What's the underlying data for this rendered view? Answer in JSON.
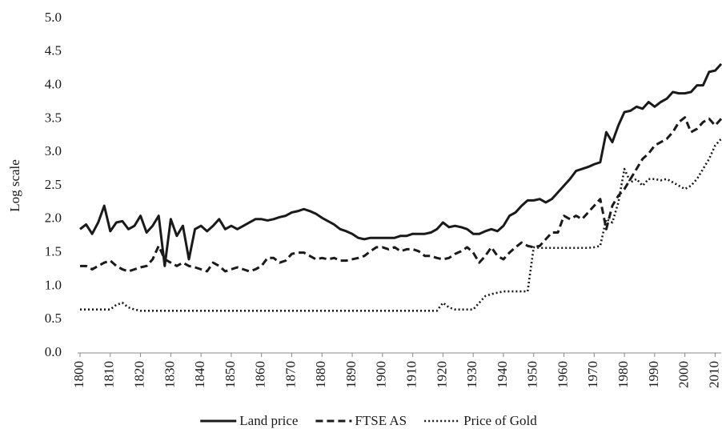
{
  "chart_data": {
    "type": "line",
    "ylabel": "Log scale",
    "x": [
      1800,
      1802,
      1804,
      1806,
      1808,
      1810,
      1812,
      1814,
      1816,
      1818,
      1820,
      1822,
      1824,
      1826,
      1828,
      1830,
      1832,
      1834,
      1836,
      1838,
      1840,
      1842,
      1844,
      1846,
      1848,
      1850,
      1852,
      1854,
      1856,
      1858,
      1860,
      1862,
      1864,
      1866,
      1868,
      1870,
      1872,
      1874,
      1876,
      1878,
      1880,
      1882,
      1884,
      1886,
      1888,
      1890,
      1892,
      1894,
      1896,
      1898,
      1900,
      1902,
      1904,
      1906,
      1908,
      1910,
      1912,
      1914,
      1916,
      1918,
      1920,
      1922,
      1924,
      1926,
      1928,
      1930,
      1932,
      1934,
      1936,
      1938,
      1940,
      1942,
      1944,
      1946,
      1948,
      1950,
      1952,
      1954,
      1956,
      1958,
      1960,
      1962,
      1964,
      1966,
      1968,
      1970,
      1972,
      1974,
      1976,
      1978,
      1980,
      1982,
      1984,
      1986,
      1988,
      1990,
      1992,
      1994,
      1996,
      1998,
      2000,
      2002,
      2004,
      2006,
      2008,
      2010,
      2012
    ],
    "series": [
      {
        "name": "Land price",
        "color": "#1a1a1a",
        "line_style": "solid",
        "values": [
          1.85,
          1.92,
          1.78,
          1.95,
          2.2,
          1.82,
          1.95,
          1.97,
          1.85,
          1.9,
          2.05,
          1.8,
          1.9,
          2.05,
          1.3,
          2.0,
          1.75,
          1.9,
          1.4,
          1.85,
          1.9,
          1.82,
          1.9,
          2.0,
          1.85,
          1.9,
          1.85,
          1.9,
          1.95,
          2.0,
          2.0,
          1.98,
          2.0,
          2.03,
          2.05,
          2.1,
          2.12,
          2.15,
          2.12,
          2.08,
          2.02,
          1.97,
          1.92,
          1.85,
          1.82,
          1.78,
          1.72,
          1.7,
          1.72,
          1.72,
          1.72,
          1.72,
          1.72,
          1.75,
          1.75,
          1.78,
          1.78,
          1.78,
          1.8,
          1.85,
          1.95,
          1.88,
          1.9,
          1.88,
          1.85,
          1.78,
          1.78,
          1.82,
          1.85,
          1.82,
          1.9,
          2.05,
          2.1,
          2.2,
          2.28,
          2.28,
          2.3,
          2.25,
          2.3,
          2.4,
          2.5,
          2.6,
          2.72,
          2.75,
          2.78,
          2.82,
          2.85,
          3.3,
          3.15,
          3.4,
          3.6,
          3.62,
          3.68,
          3.65,
          3.75,
          3.68,
          3.75,
          3.8,
          3.9,
          3.88,
          3.88,
          3.9,
          4.0,
          4.0,
          4.2,
          4.22,
          4.32
        ]
      },
      {
        "name": "FTSE AS",
        "color": "#1a1a1a",
        "line_style": "dashed",
        "values": [
          1.3,
          1.3,
          1.25,
          1.3,
          1.35,
          1.38,
          1.3,
          1.25,
          1.22,
          1.25,
          1.28,
          1.3,
          1.4,
          1.6,
          1.4,
          1.35,
          1.3,
          1.35,
          1.3,
          1.28,
          1.25,
          1.22,
          1.35,
          1.3,
          1.22,
          1.25,
          1.28,
          1.25,
          1.22,
          1.25,
          1.3,
          1.42,
          1.42,
          1.35,
          1.38,
          1.48,
          1.5,
          1.5,
          1.45,
          1.4,
          1.42,
          1.4,
          1.42,
          1.38,
          1.38,
          1.4,
          1.42,
          1.45,
          1.52,
          1.58,
          1.58,
          1.55,
          1.58,
          1.52,
          1.55,
          1.55,
          1.52,
          1.45,
          1.45,
          1.42,
          1.4,
          1.42,
          1.48,
          1.52,
          1.58,
          1.5,
          1.35,
          1.45,
          1.58,
          1.45,
          1.4,
          1.5,
          1.58,
          1.65,
          1.6,
          1.58,
          1.6,
          1.7,
          1.8,
          1.8,
          2.05,
          2.0,
          2.05,
          2.0,
          2.1,
          2.2,
          2.3,
          1.85,
          2.2,
          2.35,
          2.45,
          2.6,
          2.75,
          2.9,
          2.98,
          3.1,
          3.15,
          3.2,
          3.3,
          3.45,
          3.52,
          3.3,
          3.35,
          3.45,
          3.5,
          3.4,
          3.5
        ]
      },
      {
        "name": "Price of Gold",
        "color": "#1a1a1a",
        "line_style": "dotted",
        "values": [
          0.65,
          0.65,
          0.65,
          0.65,
          0.65,
          0.65,
          0.72,
          0.75,
          0.68,
          0.65,
          0.63,
          0.63,
          0.63,
          0.63,
          0.63,
          0.63,
          0.63,
          0.63,
          0.63,
          0.63,
          0.63,
          0.63,
          0.63,
          0.63,
          0.63,
          0.63,
          0.63,
          0.63,
          0.63,
          0.63,
          0.63,
          0.63,
          0.63,
          0.63,
          0.63,
          0.63,
          0.63,
          0.63,
          0.63,
          0.63,
          0.63,
          0.63,
          0.63,
          0.63,
          0.63,
          0.63,
          0.63,
          0.63,
          0.63,
          0.63,
          0.63,
          0.63,
          0.63,
          0.63,
          0.63,
          0.63,
          0.63,
          0.63,
          0.63,
          0.63,
          0.75,
          0.68,
          0.65,
          0.65,
          0.65,
          0.65,
          0.75,
          0.85,
          0.88,
          0.9,
          0.92,
          0.92,
          0.92,
          0.92,
          0.92,
          1.58,
          1.57,
          1.57,
          1.57,
          1.57,
          1.57,
          1.57,
          1.57,
          1.57,
          1.57,
          1.58,
          1.6,
          2.0,
          1.95,
          2.25,
          2.75,
          2.55,
          2.6,
          2.5,
          2.6,
          2.6,
          2.58,
          2.6,
          2.55,
          2.5,
          2.45,
          2.5,
          2.6,
          2.75,
          2.9,
          3.1,
          3.2
        ]
      }
    ],
    "xlim": [
      1800,
      2012
    ],
    "xticks": [
      1800,
      1810,
      1820,
      1830,
      1840,
      1850,
      1860,
      1870,
      1880,
      1890,
      1900,
      1910,
      1920,
      1930,
      1940,
      1950,
      1960,
      1970,
      1980,
      1990,
      2000,
      2010
    ],
    "ylim": [
      0,
      5
    ],
    "yticks": [
      {
        "value": 0,
        "label": "0.0"
      },
      0.5,
      {
        "value": 1,
        "label": "1.0"
      },
      1.5,
      {
        "value": 2,
        "label": "2.0"
      },
      2.5,
      {
        "value": 3,
        "label": "3.0"
      },
      3.5,
      {
        "value": 4,
        "label": "4.0"
      },
      4.5,
      {
        "value": 5,
        "label": "5.0"
      }
    ],
    "grid": false,
    "legend": "bottom"
  }
}
